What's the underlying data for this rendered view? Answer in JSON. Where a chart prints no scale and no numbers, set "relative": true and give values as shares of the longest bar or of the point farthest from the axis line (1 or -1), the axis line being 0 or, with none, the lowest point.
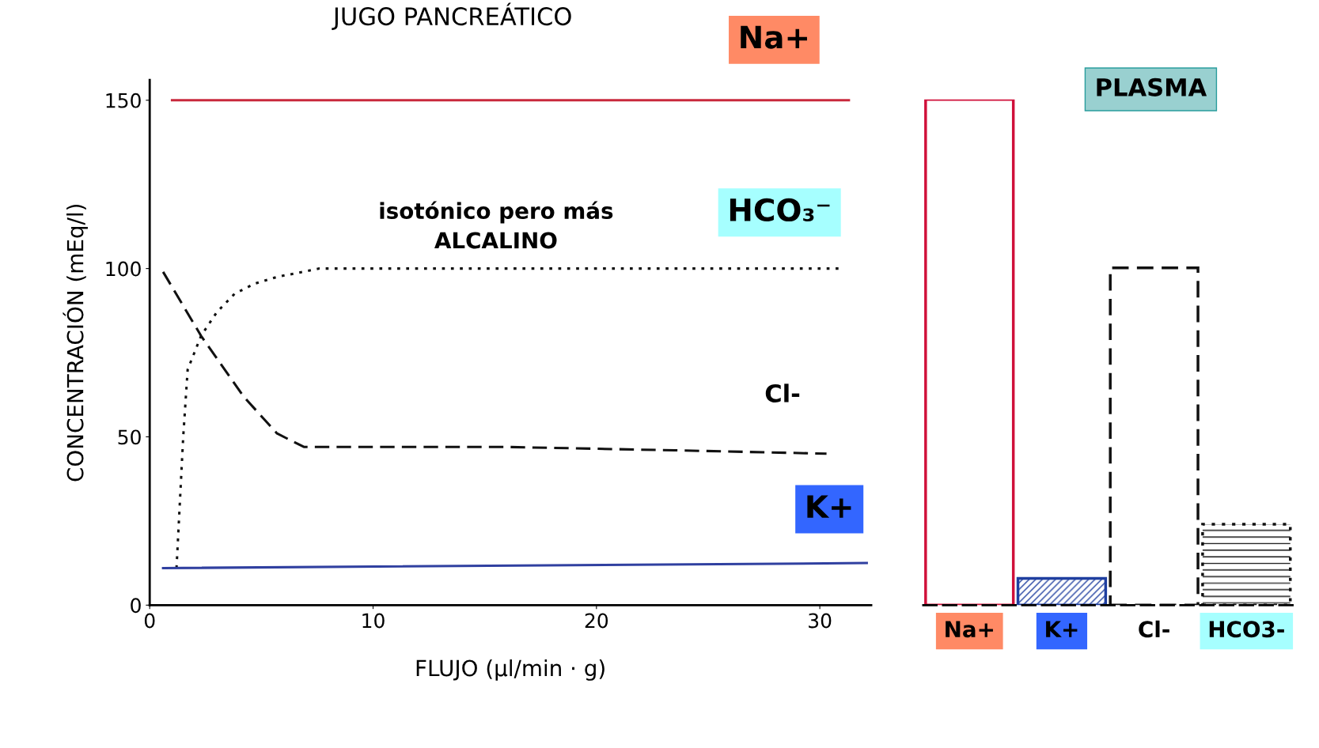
{
  "chart_data": [
    {
      "type": "line",
      "title": "JUGO PANCREÁTICO",
      "xlabel": "FLUJO (μl/min · g)",
      "ylabel": "CONCENTRACIÓN (mEq/l)",
      "xlim": [
        0,
        32.3
      ],
      "ylim": [
        0,
        156
      ],
      "xticks": [
        0,
        10,
        20,
        30
      ],
      "yticks": [
        0,
        50,
        100,
        150
      ],
      "grid": false,
      "annotations": [
        "isotónico pero más\nALCALINO"
      ],
      "series": [
        {
          "name": "Na+",
          "color": "#c8283c",
          "line_style": "solid",
          "x": [
            1.0,
            31.3
          ],
          "values": [
            150,
            150
          ]
        },
        {
          "name": "HCO₃⁻",
          "color": "#111111",
          "line_style": "dotted",
          "x": [
            1.2,
            1.5,
            1.7,
            2.3,
            3.0,
            3.8,
            4.7,
            5.7,
            7.6,
            10,
            15,
            20,
            25,
            31
          ],
          "values": [
            11,
            50,
            70,
            80,
            87,
            92.5,
            95.5,
            97.5,
            100,
            100,
            100,
            100,
            100,
            100
          ]
        },
        {
          "name": "Cl-",
          "color": "#111111",
          "line_style": "dashed",
          "x": [
            0.6,
            2.3,
            4.2,
            5.7,
            6.9,
            10.3,
            15.9,
            23.5,
            30.3
          ],
          "values": [
            99,
            80,
            62,
            51,
            47,
            47,
            47,
            46,
            45
          ]
        },
        {
          "name": "K+",
          "color": "#3040a0",
          "line_style": "solid",
          "x": [
            0.6,
            32.1
          ],
          "values": [
            11,
            12.5
          ]
        }
      ]
    },
    {
      "type": "bar",
      "title": "PLASMA",
      "relative": true,
      "categories": [
        "Na+",
        "K+",
        "Cl-",
        "HCO3-"
      ],
      "values": [
        1,
        0.053,
        0.667,
        0.16
      ],
      "colors": [
        "#d0103a",
        "#1f3fa0",
        "#111111",
        "#111111"
      ]
    }
  ]
}
